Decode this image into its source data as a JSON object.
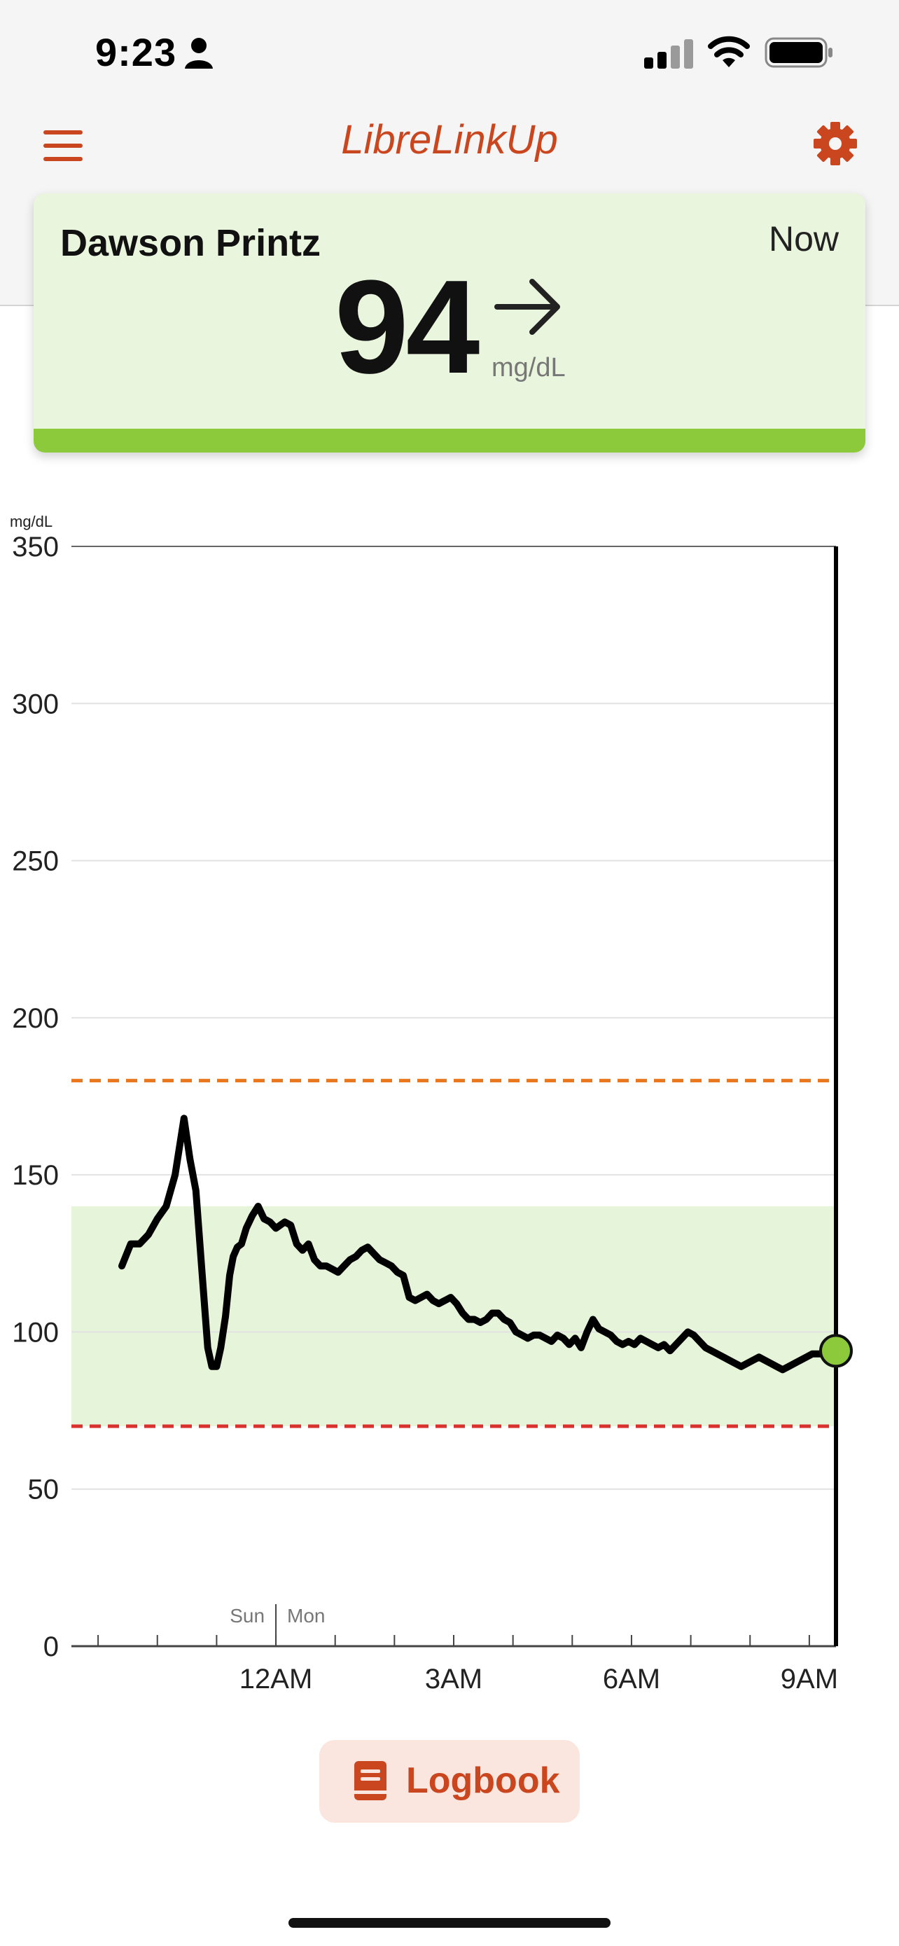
{
  "status_bar": {
    "time": "9:23",
    "icons": [
      "person-icon",
      "cellular-signal-icon",
      "wifi-icon",
      "battery-icon"
    ]
  },
  "app_bar": {
    "title": "LibreLinkUp",
    "menu_icon": "hamburger-menu-icon",
    "settings_icon": "gear-icon",
    "accent_color": "#c9461f"
  },
  "reading_card": {
    "patient_name": "Dawson Printz",
    "time_label": "Now",
    "glucose_value": "94",
    "unit": "mg/dL",
    "trend": "arrow-right-icon",
    "status_color": "#8cca3c",
    "background_color": "#e9f5dc"
  },
  "chart_data": {
    "type": "line",
    "ylabel": "mg/dL",
    "ylim": [
      0,
      350
    ],
    "y_ticks": [
      "350",
      "300",
      "250",
      "200",
      "150",
      "100",
      "50",
      "0"
    ],
    "x_ticks": [
      "12AM",
      "3AM",
      "6AM",
      "9AM"
    ],
    "day_labels": [
      "Sun",
      "Mon"
    ],
    "target_range": [
      70,
      140
    ],
    "high_threshold": 180,
    "low_threshold": 70,
    "colors": {
      "line": "#000000",
      "target_band": "#e6f4da",
      "high_line": "#e8771e",
      "low_line": "#d9322e",
      "current_point": "#8cca3c"
    },
    "series": [
      {
        "x_hours": [
          -2.6,
          -2.45,
          -2.3,
          -2.15,
          -2.0,
          -1.85,
          -1.7,
          -1.55,
          -1.45,
          -1.35,
          -1.25,
          -1.15,
          -1.08,
          -1.0,
          -0.93,
          -0.85,
          -0.78,
          -0.72,
          -0.65,
          -0.58,
          -0.5,
          -0.4,
          -0.3,
          -0.2,
          -0.1,
          0.0,
          0.15,
          0.25,
          0.35,
          0.45,
          0.55,
          0.65,
          0.75,
          0.85,
          0.95,
          1.05,
          1.15,
          1.25,
          1.35,
          1.45,
          1.55,
          1.65,
          1.75,
          1.85,
          1.95,
          2.05,
          2.15,
          2.25,
          2.35,
          2.45,
          2.55,
          2.65,
          2.75,
          2.85,
          2.95,
          3.05,
          3.15,
          3.25,
          3.35,
          3.45,
          3.55,
          3.65,
          3.75,
          3.85,
          3.95,
          4.05,
          4.15,
          4.25,
          4.35,
          4.45,
          4.55,
          4.65,
          4.75,
          4.85,
          4.95,
          5.05,
          5.15,
          5.25,
          5.35,
          5.45,
          5.55,
          5.65,
          5.75,
          5.85,
          5.95,
          6.05,
          6.15,
          6.25,
          6.35,
          6.45,
          6.55,
          6.65,
          6.75,
          6.85,
          6.95,
          7.05,
          7.15,
          7.25,
          7.35,
          7.45,
          7.55,
          7.65,
          7.75,
          7.85,
          7.95,
          8.05,
          8.15,
          8.25,
          8.35,
          8.45,
          8.55,
          8.65,
          8.75,
          8.85,
          8.95,
          9.05,
          9.15,
          9.25,
          9.35,
          9.45
        ],
        "values": [
          121,
          128,
          128,
          131,
          136,
          140,
          150,
          168,
          155,
          145,
          120,
          95,
          89,
          89,
          95,
          105,
          118,
          124,
          127,
          128,
          133,
          137,
          140,
          136,
          135,
          133,
          135,
          134,
          128,
          126,
          128,
          123,
          121,
          121,
          120,
          119,
          121,
          123,
          124,
          126,
          127,
          125,
          123,
          122,
          121,
          119,
          118,
          111,
          110,
          111,
          112,
          110,
          109,
          110,
          111,
          109,
          106,
          104,
          104,
          103,
          104,
          106,
          106,
          104,
          103,
          100,
          99,
          98,
          99,
          99,
          98,
          97,
          99,
          98,
          96,
          98,
          95,
          100,
          104,
          101,
          100,
          99,
          97,
          96,
          97,
          96,
          98,
          97,
          96,
          95,
          96,
          94,
          96,
          98,
          100,
          99,
          97,
          95,
          94,
          93,
          92,
          91,
          90,
          89,
          90,
          91,
          92,
          91,
          90,
          89,
          88,
          89,
          90,
          91,
          92,
          93,
          93,
          93,
          94,
          94
        ]
      }
    ],
    "current_point": {
      "x_hours": 9.45,
      "value": 94
    }
  },
  "logbook": {
    "label": "Logbook",
    "icon": "book-icon"
  }
}
